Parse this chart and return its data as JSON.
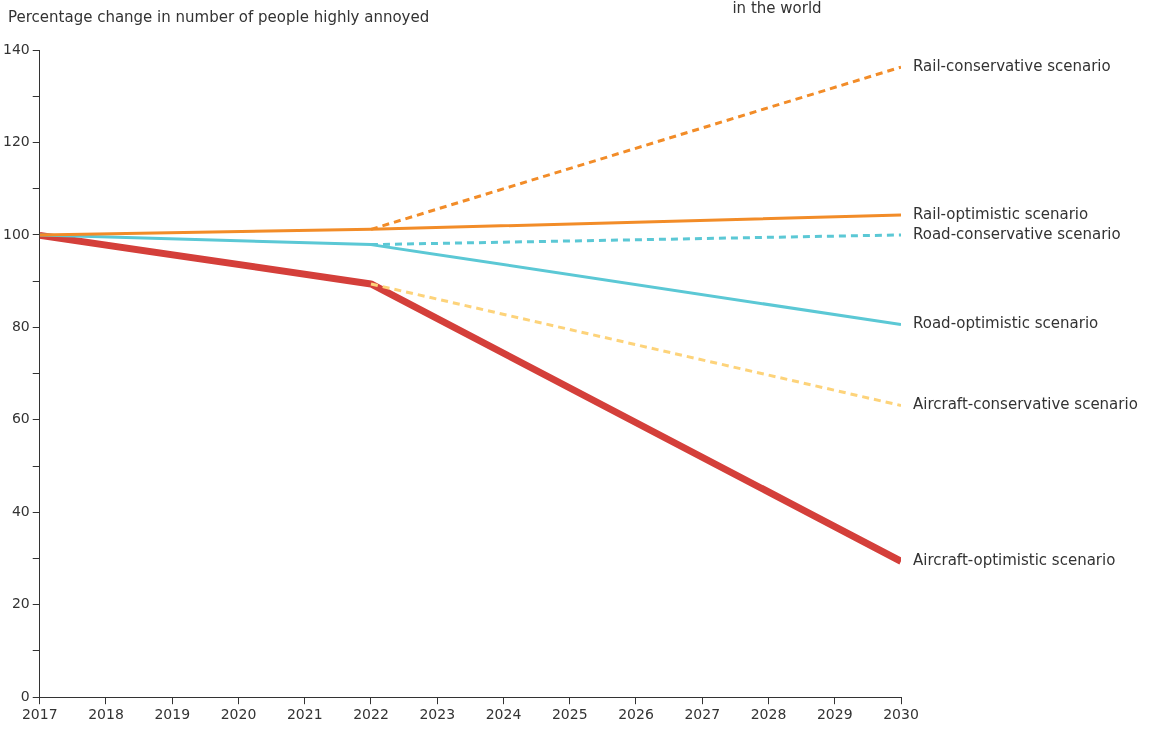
{
  "chart_data": {
    "type": "line",
    "ylabel": "Percentage change in number of people highly annoyed",
    "annotations": [
      "in the world"
    ],
    "xlim": [
      2017,
      2030
    ],
    "xticks": [
      2017,
      2018,
      2019,
      2020,
      2021,
      2022,
      2023,
      2024,
      2025,
      2026,
      2027,
      2028,
      2029,
      2030
    ],
    "ylim": [
      0,
      140
    ],
    "yticks": [
      0,
      {
        "value": 10,
        "label": null
      },
      20,
      {
        "value": 30,
        "label": null
      },
      40,
      {
        "value": 50,
        "label": null
      },
      60,
      {
        "value": 70,
        "label": null
      },
      80,
      {
        "value": 90,
        "label": null
      },
      100,
      {
        "value": 110,
        "label": null
      },
      120,
      {
        "value": 130,
        "label": null
      },
      140
    ],
    "grid": false,
    "legend": false,
    "marker": "none",
    "series": [
      {
        "name": "Rail-conservative scenario",
        "color": "#f28c28",
        "line_style": "dashed",
        "x": [
          2022,
          2030
        ],
        "values": [
          101.2,
          136.3
        ]
      },
      {
        "name": "Rail-optimistic scenario",
        "color": "#f28c28",
        "line_style": "solid",
        "x": [
          2017,
          2022,
          2030
        ],
        "values": [
          100,
          101.2,
          104.3
        ]
      },
      {
        "name": "Road-conservative scenario",
        "color": "#5bc8d5",
        "line_style": "dashed",
        "x": [
          2022,
          2030
        ],
        "values": [
          97.9,
          100
        ]
      },
      {
        "name": "Road-optimistic scenario",
        "color": "#5bc8d5",
        "line_style": "solid",
        "x": [
          2017,
          2022,
          2030
        ],
        "values": [
          100,
          97.9,
          80.6
        ]
      },
      {
        "name": "Aircraft-conservative scenario",
        "color": "#fdd37a",
        "line_style": "dashed",
        "x": [
          2022,
          2030
        ],
        "values": [
          89.4,
          63.1
        ]
      },
      {
        "name": "Aircraft-optimistic scenario",
        "color": "#d43f3a",
        "line_style": "solid",
        "x": [
          2017,
          2022,
          2030
        ],
        "values": [
          99.9,
          89.4,
          29.4
        ]
      }
    ]
  }
}
